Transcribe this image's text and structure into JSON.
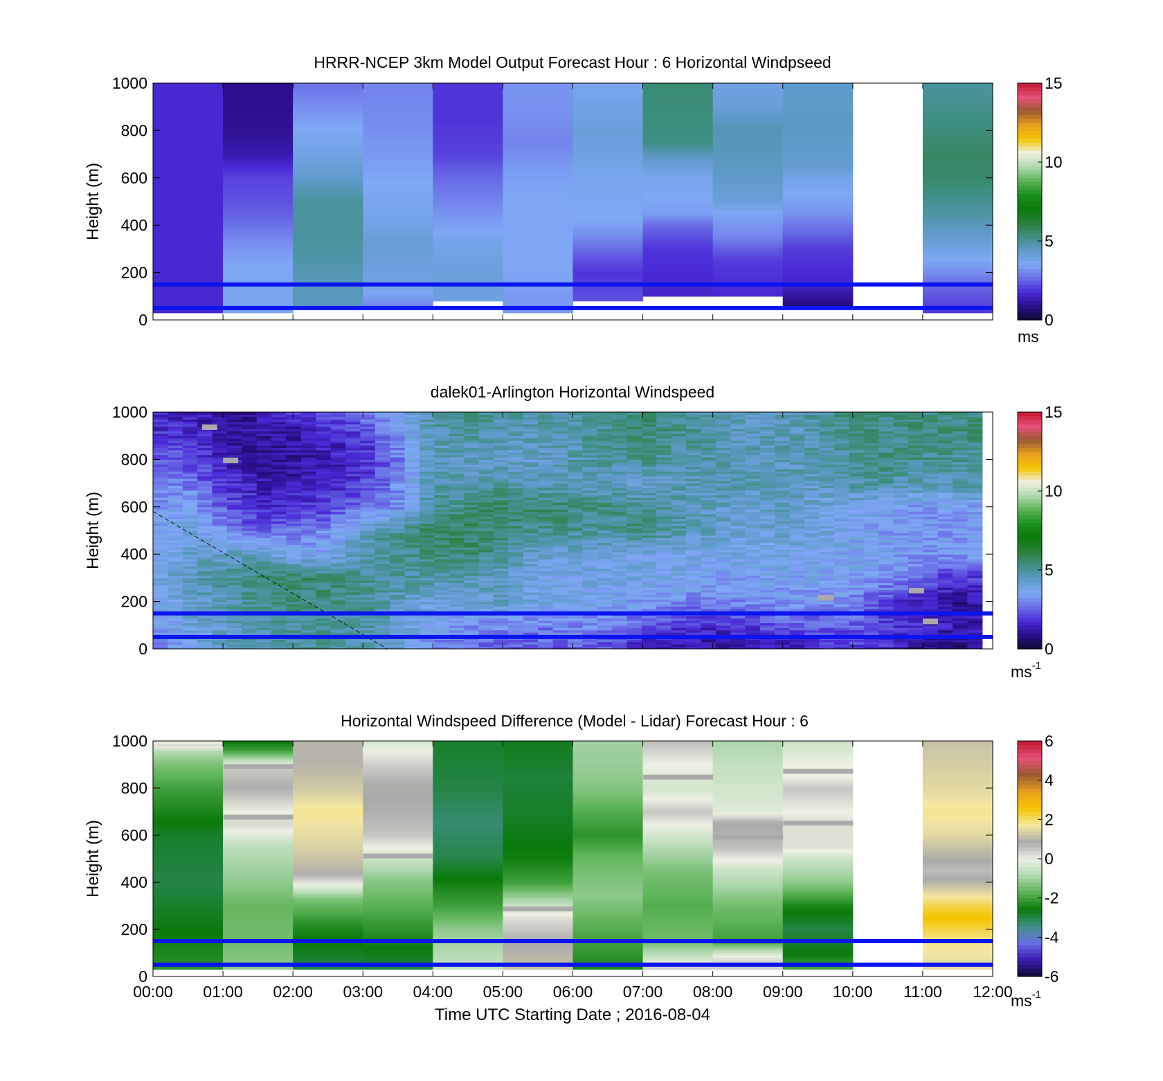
{
  "colors": {
    "blue_reference_line": "#0a14f0",
    "missing_data": "#ffffff",
    "speed_colormap": [
      "#0d0a30",
      "#2a0e8a",
      "#4a2ad6",
      "#6a6ee6",
      "#7fa8f5",
      "#5f9bcb",
      "#3f8f84",
      "#2b7f3a",
      "#0a7a0a",
      "#18901d",
      "#5bb355",
      "#b0d8b0",
      "#f0f0e0",
      "#f4c400",
      "#e8a020",
      "#9a5a30",
      "#e8507a",
      "#c01830"
    ],
    "diff_colormap": [
      "#0d0a30",
      "#3a1ab0",
      "#6a6ee6",
      "#3f8f84",
      "#0a7a0a",
      "#5bb355",
      "#b0d8b0",
      "#eef0e4",
      "#aaaaaa",
      "#f4e8a0",
      "#f4c400",
      "#e8a020",
      "#9a5a30",
      "#e8507a",
      "#c01830"
    ]
  },
  "x_axis": {
    "label": "Time UTC  Starting Date ; 2016-08-04",
    "ticks": [
      "00:00",
      "01:00",
      "02:00",
      "03:00",
      "04:00",
      "05:00",
      "06:00",
      "07:00",
      "08:00",
      "09:00",
      "10:00",
      "11:00",
      "12:00"
    ]
  },
  "chart_data": [
    {
      "type": "heatmap",
      "title": "HRRR-NCEP 3km Model Output   Forecast Hour : 6 Horizontal Windpseed",
      "ylabel": "Height (m)",
      "ylim": [
        0,
        1000
      ],
      "yticks": [
        "0",
        "200",
        "400",
        "600",
        "800",
        "1000"
      ],
      "xlim_hours": [
        0,
        12
      ],
      "colorbar": {
        "ticks": [
          "0",
          "5",
          "10",
          "15"
        ],
        "range": [
          0,
          15
        ],
        "units_text": "ms",
        "units_sup": ""
      },
      "reference_lines_m": [
        50,
        150
      ],
      "columns": [
        {
          "start_hour": 0,
          "end_hour": 1,
          "levels_m": [
            30,
            1000
          ],
          "values": [
            1.7,
            1.7
          ]
        },
        {
          "start_hour": 1,
          "end_hour": 2,
          "levels_m": [
            30,
            80,
            150,
            230,
            300,
            350,
            420,
            500,
            600,
            700,
            800,
            1000
          ],
          "values": [
            3.5,
            3.7,
            3.7,
            3.5,
            3.3,
            3.0,
            2.6,
            2.3,
            2.1,
            1.3,
            1.0,
            0.9
          ]
        },
        {
          "start_hour": 2,
          "end_hour": 3,
          "levels_m": [
            60,
            350,
            500,
            600,
            700,
            800,
            1000
          ],
          "values": [
            4.5,
            5.0,
            5.0,
            4.4,
            3.9,
            3.6,
            2.7
          ]
        },
        {
          "start_hour": 3,
          "end_hour": 4,
          "levels_m": [
            60,
            160,
            340,
            400,
            500,
            650,
            850,
            1000
          ],
          "values": [
            3.0,
            3.9,
            4.2,
            3.9,
            3.7,
            3.4,
            3.1,
            3.0
          ]
        },
        {
          "start_hour": 4,
          "end_hour": 5,
          "levels_m": [
            80,
            180,
            330,
            400,
            500,
            600,
            700,
            850,
            1000
          ],
          "values": [
            4.0,
            4.1,
            3.8,
            3.4,
            3.0,
            2.6,
            2.1,
            1.9,
            1.9
          ]
        },
        {
          "start_hour": 5,
          "end_hour": 6,
          "levels_m": [
            30,
            100,
            200,
            400,
            550,
            650,
            750,
            900,
            1000
          ],
          "values": [
            3.3,
            3.3,
            3.5,
            3.5,
            3.5,
            3.3,
            3.0,
            3.2,
            3.2
          ]
        },
        {
          "start_hour": 6,
          "end_hour": 7,
          "levels_m": [
            80,
            200,
            300,
            380,
            450,
            600,
            700,
            800,
            1000
          ],
          "values": [
            2.3,
            1.9,
            2.6,
            3.3,
            3.6,
            3.7,
            4.0,
            4.1,
            3.7
          ]
        },
        {
          "start_hour": 7,
          "end_hour": 8,
          "levels_m": [
            100,
            300,
            400,
            450,
            600,
            700,
            750,
            1000
          ],
          "values": [
            1.6,
            1.9,
            2.6,
            3.4,
            3.7,
            4.6,
            5.3,
            5.5
          ]
        },
        {
          "start_hour": 8,
          "end_hour": 9,
          "levels_m": [
            100,
            250,
            300,
            350,
            450,
            500,
            600,
            700,
            800,
            900,
            1000
          ],
          "values": [
            1.7,
            2.0,
            2.4,
            3.0,
            3.5,
            4.1,
            4.4,
            4.6,
            4.7,
            4.2,
            3.9
          ]
        },
        {
          "start_hour": 9,
          "end_hour": 10,
          "levels_m": [
            60,
            150,
            300,
            450,
            600,
            650,
            800,
            1000
          ],
          "values": [
            0.7,
            1.6,
            2.0,
            3.2,
            3.8,
            4.3,
            4.5,
            4.4
          ]
        },
        {
          "start_hour": 11,
          "end_hour": 12,
          "levels_m": [
            30,
            80,
            150,
            200,
            250,
            300,
            350,
            400,
            450,
            600,
            700,
            800,
            1000
          ],
          "values": [
            2.0,
            2.2,
            2.6,
            3.1,
            3.5,
            3.9,
            4.3,
            4.6,
            4.9,
            5.6,
            5.7,
            5.4,
            5.0
          ]
        }
      ]
    },
    {
      "type": "heatmap",
      "title": "dalek01-Arlington  Horizontal Windspeed",
      "ylabel": "Height (m)",
      "ylim": [
        0,
        1000
      ],
      "yticks": [
        "0",
        "200",
        "400",
        "600",
        "800",
        "1000"
      ],
      "xlim_hours": [
        0,
        12
      ],
      "colorbar": {
        "ticks": [
          "0",
          "5",
          "10",
          "15"
        ],
        "range": [
          0,
          15
        ],
        "units_text": "ms",
        "units_sup": "-1"
      },
      "reference_lines_m": [
        50,
        150
      ],
      "data_end_hour": 11.85,
      "time_hours": [
        0,
        0.5,
        1,
        1.5,
        2,
        2.5,
        3,
        3.5,
        4,
        4.5,
        5,
        5.5,
        6,
        6.5,
        7,
        7.5,
        8,
        8.5,
        9,
        9.5,
        10,
        10.5,
        11,
        11.5,
        12
      ],
      "heights_m": [
        0,
        100,
        200,
        300,
        400,
        500,
        600,
        700,
        800,
        900,
        1000
      ],
      "values": [
        [
          3.0,
          3.6,
          4.5,
          4.7,
          5.0,
          5.0,
          4.7,
          4.1,
          2.9,
          2.7,
          2.4,
          2.3,
          2.5,
          2.1,
          1.5,
          1.3,
          0.9,
          1.1,
          1.3,
          1.6,
          1.9,
          1.7,
          0.8,
          0.7,
          0.8
        ],
        [
          3.2,
          4.0,
          4.4,
          4.8,
          5.0,
          5.1,
          4.8,
          4.2,
          3.6,
          3.2,
          3.1,
          2.9,
          3.0,
          3.1,
          2.3,
          1.9,
          1.7,
          2.0,
          2.3,
          2.4,
          2.5,
          2.0,
          1.7,
          1.3,
          1.6
        ],
        [
          3.5,
          4.2,
          4.7,
          5.2,
          5.4,
          5.3,
          5.1,
          4.5,
          4.1,
          4.1,
          4.4,
          4.0,
          3.8,
          3.6,
          3.4,
          3.1,
          2.9,
          3.1,
          3.3,
          3.2,
          3.1,
          2.0,
          1.3,
          1.0,
          1.3
        ],
        [
          3.7,
          4.5,
          5.0,
          5.5,
          5.6,
          5.5,
          5.2,
          4.9,
          4.8,
          4.8,
          4.3,
          3.8,
          3.7,
          4.0,
          3.9,
          3.8,
          3.5,
          3.5,
          3.6,
          3.5,
          3.5,
          3.3,
          2.5,
          1.8,
          2.1
        ],
        [
          3.5,
          4.2,
          4.3,
          4.4,
          3.7,
          3.6,
          4.6,
          5.2,
          5.3,
          5.5,
          5.0,
          4.2,
          4.1,
          4.0,
          3.8,
          3.9,
          3.8,
          3.6,
          3.9,
          3.9,
          3.6,
          3.6,
          3.2,
          3.3,
          3.5
        ],
        [
          3.6,
          4.0,
          3.2,
          2.4,
          2.7,
          3.0,
          4.4,
          5.0,
          5.6,
          5.7,
          5.4,
          5.1,
          5.2,
          4.9,
          5.4,
          4.8,
          4.5,
          4.1,
          4.2,
          4.2,
          3.6,
          3.4,
          3.3,
          3.2,
          3.6
        ],
        [
          3.3,
          3.6,
          2.5,
          1.6,
          1.8,
          2.1,
          2.7,
          3.1,
          5.0,
          5.4,
          5.6,
          5.5,
          5.4,
          5.3,
          5.1,
          4.8,
          4.5,
          4.1,
          4.5,
          4.2,
          3.8,
          3.5,
          3.3,
          3.4,
          3.6
        ],
        [
          3.0,
          2.8,
          1.9,
          1.4,
          1.3,
          1.6,
          1.9,
          3.0,
          4.8,
          4.8,
          4.9,
          4.5,
          4.6,
          4.5,
          4.1,
          4.6,
          4.6,
          4.7,
          4.5,
          4.3,
          4.8,
          4.9,
          4.6,
          4.8,
          4.9
        ],
        [
          2.6,
          2.2,
          1.5,
          1.0,
          1.1,
          1.3,
          1.8,
          2.9,
          4.6,
          4.5,
          4.4,
          4.3,
          4.7,
          5.0,
          5.3,
          4.9,
          4.8,
          4.6,
          4.5,
          4.6,
          5.2,
          5.3,
          5.1,
          5.0,
          5.0
        ],
        [
          2.0,
          1.8,
          1.3,
          1.1,
          1.2,
          1.6,
          1.9,
          3.2,
          4.6,
          4.9,
          4.7,
          4.6,
          4.7,
          5.1,
          5.4,
          5.2,
          4.9,
          4.6,
          4.6,
          4.8,
          5.1,
          5.3,
          5.3,
          5.3,
          5.5
        ],
        [
          1.4,
          1.5,
          1.0,
          1.2,
          1.7,
          2.1,
          2.9,
          3.9,
          5.0,
          5.3,
          4.9,
          4.9,
          4.8,
          5.3,
          5.5,
          5.0,
          4.7,
          4.5,
          4.5,
          4.9,
          5.4,
          5.3,
          5.4,
          5.3,
          5.4
        ]
      ],
      "missing_spots": [
        {
          "hour": 0.8,
          "height_m": 930
        },
        {
          "hour": 1.1,
          "height_m": 790
        },
        {
          "hour": 9.6,
          "height_m": 210
        },
        {
          "hour": 10.9,
          "height_m": 240
        },
        {
          "hour": 11.1,
          "height_m": 110
        }
      ],
      "dashed_line": {
        "from": {
          "hour": 0,
          "height_m": 580
        },
        "to": {
          "hour": 3.35,
          "height_m": 0
        }
      }
    },
    {
      "type": "heatmap",
      "title": "Horizontal Windspeed Difference (Model - Lidar) Forecast Hour : 6",
      "ylabel": "Height (m)",
      "ylim": [
        0,
        1000
      ],
      "yticks": [
        "0",
        "200",
        "400",
        "600",
        "800",
        "1000"
      ],
      "xlim_hours": [
        0,
        12
      ],
      "colorbar": {
        "ticks": [
          "-6",
          "-4",
          "-2",
          "0",
          "2",
          "4",
          "6"
        ],
        "range": [
          -6,
          6
        ],
        "units_text": "ms",
        "units_sup": "-1"
      },
      "reference_lines_m": [
        50,
        150
      ],
      "columns": [
        {
          "start_hour": 0,
          "end_hour": 1,
          "levels_m": [
            30,
            200,
            400,
            600,
            800,
            900,
            960,
            980,
            1000
          ],
          "values": [
            -2.2,
            -2.6,
            -3.0,
            -2.8,
            -2.0,
            -1.4,
            -0.8,
            0.4,
            -0.3
          ]
        },
        {
          "start_hour": 1,
          "end_hour": 2,
          "levels_m": [
            30,
            150,
            300,
            400,
            550,
            620,
            650,
            700,
            800,
            880,
            960,
            1000
          ],
          "values": [
            -1.2,
            -1.5,
            -1.6,
            -1.2,
            -0.7,
            0.0,
            0.3,
            0.0,
            0.8,
            0.5,
            -2.0,
            -2.6
          ]
        },
        {
          "start_hour": 2,
          "end_hour": 3,
          "levels_m": [
            30,
            200,
            330,
            400,
            450,
            550,
            700,
            800,
            900,
            1000
          ],
          "values": [
            -3.0,
            -2.4,
            -1.4,
            0.2,
            1.0,
            1.4,
            1.8,
            1.3,
            1.0,
            1.0
          ]
        },
        {
          "start_hour": 3,
          "end_hour": 4,
          "levels_m": [
            30,
            200,
            400,
            500,
            600,
            700,
            800,
            900,
            1000
          ],
          "values": [
            -3.0,
            -2.2,
            -1.3,
            -0.5,
            0.5,
            0.8,
            0.9,
            0.4,
            -0.3
          ]
        },
        {
          "start_hour": 4,
          "end_hour": 5,
          "levels_m": [
            30,
            100,
            200,
            300,
            400,
            500,
            650,
            800,
            1000
          ],
          "values": [
            -0.5,
            -0.8,
            -1.2,
            -2.0,
            -2.5,
            -3.0,
            -3.3,
            -3.0,
            -2.8
          ]
        },
        {
          "start_hour": 5,
          "end_hour": 6,
          "levels_m": [
            30,
            150,
            250,
            300,
            400,
            500,
            700,
            850,
            1000
          ],
          "values": [
            1.2,
            0.8,
            0.2,
            -0.5,
            -2.0,
            -2.5,
            -2.8,
            -2.9,
            -2.7
          ]
        },
        {
          "start_hour": 6,
          "end_hour": 7,
          "levels_m": [
            30,
            150,
            350,
            500,
            600,
            700,
            800,
            900,
            1000
          ],
          "values": [
            -2.4,
            -2.0,
            -1.2,
            -1.6,
            -2.2,
            -1.8,
            -1.3,
            -1.1,
            -1.0
          ]
        },
        {
          "start_hour": 7,
          "end_hour": 8,
          "levels_m": [
            30,
            80,
            150,
            300,
            450,
            550,
            700,
            800,
            900,
            1000
          ],
          "values": [
            0.5,
            -0.5,
            -1.5,
            -1.8,
            -1.4,
            -0.8,
            0.5,
            -0.4,
            0.0,
            0.6
          ]
        },
        {
          "start_hour": 8,
          "end_hour": 9,
          "levels_m": [
            30,
            80,
            150,
            300,
            450,
            550,
            650,
            700,
            900,
            1000
          ],
          "values": [
            0.4,
            0.2,
            -2.0,
            -1.5,
            -0.5,
            0.6,
            0.9,
            -0.2,
            -0.6,
            -0.9
          ]
        },
        {
          "start_hour": 9,
          "end_hour": 10,
          "levels_m": [
            30,
            100,
            200,
            300,
            400,
            500,
            550,
            650,
            700,
            800,
            850,
            900,
            1000
          ],
          "values": [
            -1.9,
            -2.6,
            -3.0,
            -2.4,
            -1.2,
            -0.5,
            0.2,
            0.2,
            0.0,
            0.5,
            0.0,
            0.0,
            -0.5
          ]
        },
        {
          "start_hour": 11,
          "end_hour": 12,
          "levels_m": [
            30,
            150,
            200,
            250,
            300,
            350,
            400,
            450,
            600,
            700,
            800,
            1000
          ],
          "values": [
            1.5,
            1.8,
            2.2,
            2.6,
            2.2,
            1.6,
            1.0,
            0.6,
            1.5,
            1.8,
            1.5,
            1.2
          ]
        }
      ],
      "missing_spots": [
        {
          "hour": 1.5,
          "height_m": 890
        },
        {
          "hour": 1.5,
          "height_m": 675
        },
        {
          "hour": 3.5,
          "height_m": 510
        },
        {
          "hour": 5.5,
          "height_m": 285
        },
        {
          "hour": 7.5,
          "height_m": 845
        },
        {
          "hour": 8.5,
          "height_m": 590
        },
        {
          "hour": 9.5,
          "height_m": 870
        },
        {
          "hour": 9.5,
          "height_m": 650
        }
      ]
    }
  ]
}
